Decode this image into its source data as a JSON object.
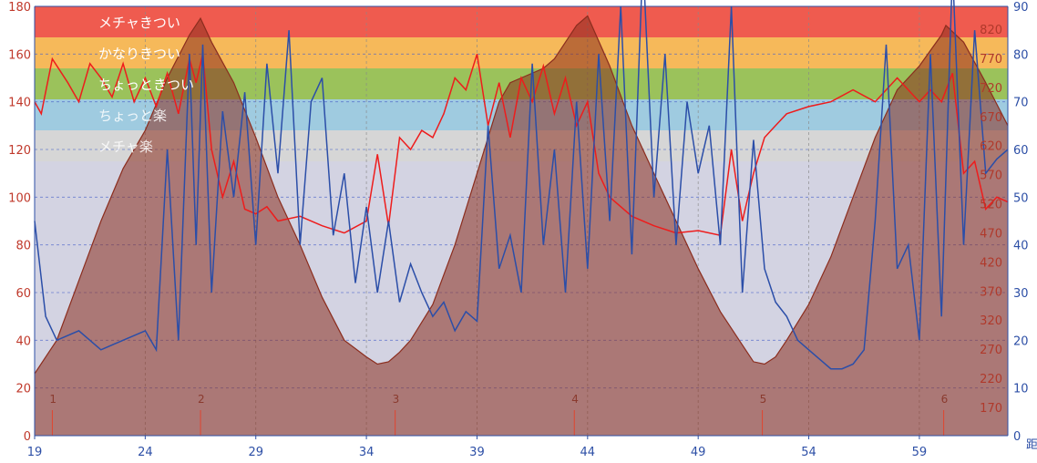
{
  "chart_data": {
    "type": "line",
    "x_axis": {
      "ticks": [
        "19",
        "24",
        "29",
        "34",
        "39",
        "44",
        "49",
        "54",
        "59"
      ],
      "tick_values": [
        19,
        24,
        29,
        34,
        39,
        44,
        49,
        54,
        59
      ],
      "range": [
        19,
        63
      ],
      "label": "距"
    },
    "y_left": {
      "ticks": [
        "0",
        "20",
        "40",
        "60",
        "80",
        "100",
        "120",
        "140",
        "160",
        "180"
      ],
      "range": [
        0,
        180
      ]
    },
    "y_right_blue": {
      "ticks": [
        "0",
        "10",
        "20",
        "30",
        "40",
        "50",
        "60",
        "70",
        "80",
        "90"
      ],
      "range": [
        0,
        90
      ]
    },
    "y_right_red": {
      "ticks": [
        "170",
        "220",
        "270",
        "320",
        "370",
        "420",
        "470",
        "520",
        "570",
        "620",
        "670",
        "720",
        "770",
        "820"
      ],
      "values": [
        170,
        220,
        270,
        320,
        370,
        420,
        470,
        520,
        570,
        620,
        670,
        720,
        770,
        820
      ]
    },
    "zones": [
      {
        "label": "メチャきつい",
        "from": 167,
        "to": 180,
        "color": "#ef5b4f"
      },
      {
        "label": "かなりきつい",
        "from": 154,
        "to": 167,
        "color": "#f6b95a"
      },
      {
        "label": "ちょっときつい",
        "from": 141,
        "to": 154,
        "color": "#9bc25b"
      },
      {
        "label": "ちょっと楽",
        "from": 128,
        "to": 141,
        "color": "#9fcbe0"
      },
      {
        "label": "メチャ楽",
        "from": 115,
        "to": 128,
        "color": "#d6d6d6"
      }
    ],
    "markers": [
      {
        "label": "1",
        "x": 19.8
      },
      {
        "label": "2",
        "x": 26.5
      },
      {
        "label": "3",
        "x": 35.3
      },
      {
        "label": "4",
        "x": 43.4
      },
      {
        "label": "5",
        "x": 51.9
      },
      {
        "label": "6",
        "x": 60.1
      }
    ],
    "series": [
      {
        "key": "elevation",
        "color": "#8b2d1e",
        "x": [
          19,
          20,
          21,
          22,
          23,
          24,
          25,
          26,
          26.5,
          27,
          28,
          29,
          30,
          31,
          32,
          33,
          34,
          34.5,
          35,
          35.5,
          36,
          37,
          38,
          39,
          40,
          40.5,
          41,
          42,
          42.5,
          43,
          43.5,
          44,
          45,
          46,
          47,
          48,
          49,
          50,
          51,
          51.5,
          52,
          52.5,
          53,
          54,
          55,
          56,
          57,
          58,
          59,
          60,
          60.2,
          61,
          62,
          63
        ],
        "y": [
          26,
          40,
          65,
          90,
          112,
          128,
          150,
          168,
          175,
          165,
          148,
          125,
          100,
          80,
          58,
          40,
          33,
          30,
          31,
          35,
          40,
          55,
          80,
          110,
          140,
          148,
          150,
          154,
          158,
          165,
          172,
          176,
          155,
          130,
          110,
          90,
          70,
          52,
          38,
          31,
          30,
          33,
          40,
          55,
          75,
          100,
          125,
          145,
          155,
          168,
          172,
          165,
          148,
          130
        ]
      },
      {
        "key": "heart_rate",
        "color": "#ee1c1c",
        "x": [
          19,
          19.3,
          19.8,
          20.5,
          21,
          21.5,
          22,
          22.5,
          23,
          23.5,
          24,
          24.5,
          25,
          25.5,
          26,
          26.3,
          26.6,
          27,
          27.5,
          28,
          28.5,
          29,
          29.5,
          30,
          31,
          32,
          33,
          34,
          34.5,
          35,
          35.5,
          36,
          36.5,
          37,
          37.5,
          38,
          38.5,
          39,
          39.5,
          40,
          40.5,
          41,
          41.5,
          42,
          42.5,
          43,
          43.5,
          44,
          44.5,
          45,
          46,
          47,
          48,
          49,
          50,
          50.5,
          51,
          51.5,
          52,
          52.5,
          53,
          54,
          55,
          56,
          57,
          58,
          59,
          59.5,
          60,
          60.5,
          61,
          61.5,
          62,
          62.5,
          63
        ],
        "y": [
          140,
          135,
          158,
          148,
          140,
          156,
          150,
          142,
          156,
          140,
          150,
          138,
          152,
          135,
          158,
          148,
          160,
          120,
          100,
          115,
          95,
          93,
          96,
          90,
          92,
          88,
          85,
          90,
          118,
          88,
          125,
          120,
          128,
          125,
          135,
          150,
          145,
          160,
          130,
          148,
          125,
          150,
          140,
          155,
          135,
          150,
          130,
          140,
          110,
          100,
          92,
          88,
          85,
          86,
          84,
          120,
          90,
          110,
          125,
          130,
          135,
          138,
          140,
          145,
          140,
          150,
          140,
          145,
          140,
          152,
          110,
          115,
          95,
          100,
          98
        ]
      },
      {
        "key": "cadence",
        "color": "#2b4ea8",
        "x": [
          19,
          19.5,
          20,
          21,
          22,
          23,
          24,
          24.5,
          25,
          25.5,
          26,
          26.3,
          26.6,
          27,
          27.5,
          28,
          28.5,
          29,
          29.5,
          30,
          30.5,
          31,
          31.5,
          32,
          32.5,
          33,
          33.5,
          34,
          34.5,
          35,
          35.5,
          36,
          36.5,
          37,
          37.5,
          38,
          38.5,
          39,
          39.5,
          40,
          40.5,
          41,
          41.5,
          42,
          42.5,
          43,
          43.5,
          44,
          44.5,
          45,
          45.5,
          46,
          46.5,
          47,
          47.5,
          48,
          48.5,
          49,
          49.5,
          50,
          50.5,
          51,
          51.5,
          52,
          52.5,
          53,
          53.5,
          54,
          54.5,
          55,
          55.5,
          56,
          56.5,
          57,
          57.5,
          58,
          58.5,
          59,
          59.5,
          60,
          60.5,
          61,
          61.5,
          62,
          62.5,
          63
        ],
        "y": [
          45,
          25,
          20,
          22,
          18,
          20,
          22,
          18,
          60,
          20,
          80,
          40,
          82,
          30,
          68,
          50,
          72,
          40,
          78,
          55,
          85,
          40,
          70,
          75,
          42,
          55,
          32,
          48,
          30,
          45,
          28,
          36,
          30,
          25,
          28,
          22,
          26,
          24,
          65,
          35,
          42,
          30,
          78,
          40,
          60,
          30,
          70,
          35,
          80,
          45,
          90,
          38,
          100,
          50,
          80,
          40,
          70,
          55,
          65,
          40,
          90,
          30,
          62,
          35,
          28,
          25,
          20,
          18,
          16,
          14,
          14,
          15,
          18,
          45,
          82,
          35,
          40,
          20,
          80,
          25,
          98,
          40,
          85,
          55,
          58,
          60
        ]
      }
    ]
  }
}
